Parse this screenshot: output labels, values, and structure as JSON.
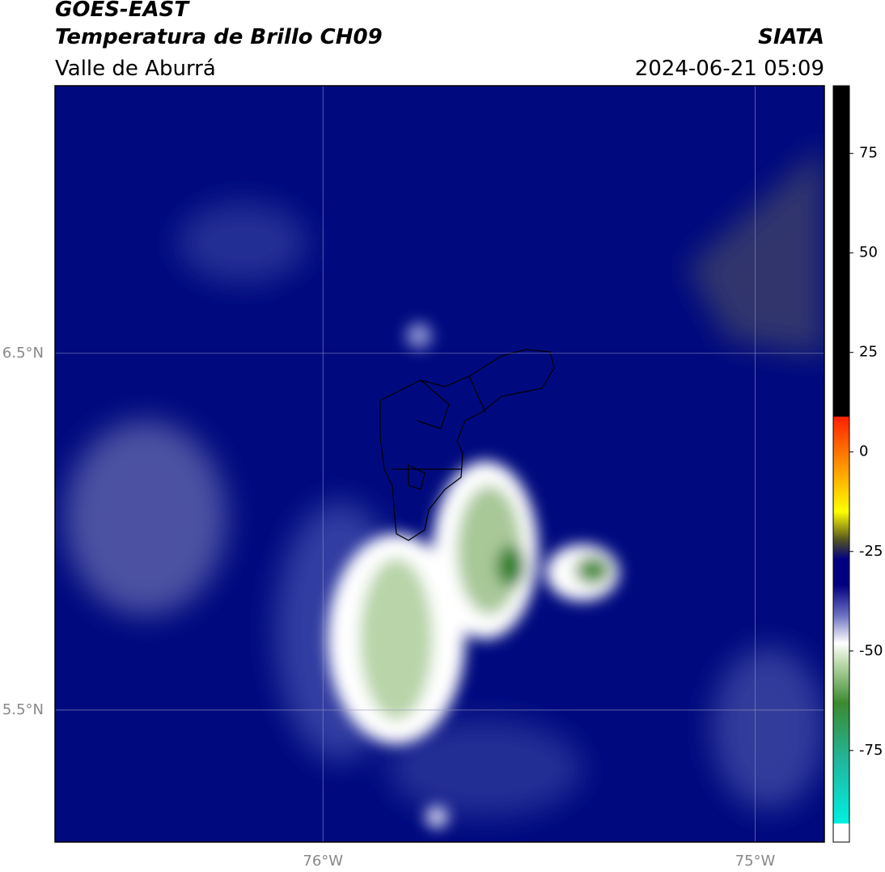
{
  "header": {
    "title": "GOES-EAST",
    "subtitle": "Temperatura de Brillo CH09",
    "region": "Valle de Aburrá",
    "source": "SIATA",
    "datetime": "2024-06-21 05:09"
  },
  "map": {
    "xlim": [
      -76.62,
      -74.84
    ],
    "ylim": [
      5.13,
      7.25
    ],
    "xticks": [
      {
        "value": -76,
        "label": "76°W"
      },
      {
        "value": -75,
        "label": "75°W"
      }
    ],
    "yticks": [
      {
        "value": 6.5,
        "label": "6.5°N"
      },
      {
        "value": 5.5,
        "label": "5.5°N"
      }
    ],
    "grid": true
  },
  "colorbar": {
    "lim": [
      -98,
      92
    ],
    "ticks": [
      75,
      50,
      25,
      0,
      -25,
      -50,
      -75
    ]
  }
}
